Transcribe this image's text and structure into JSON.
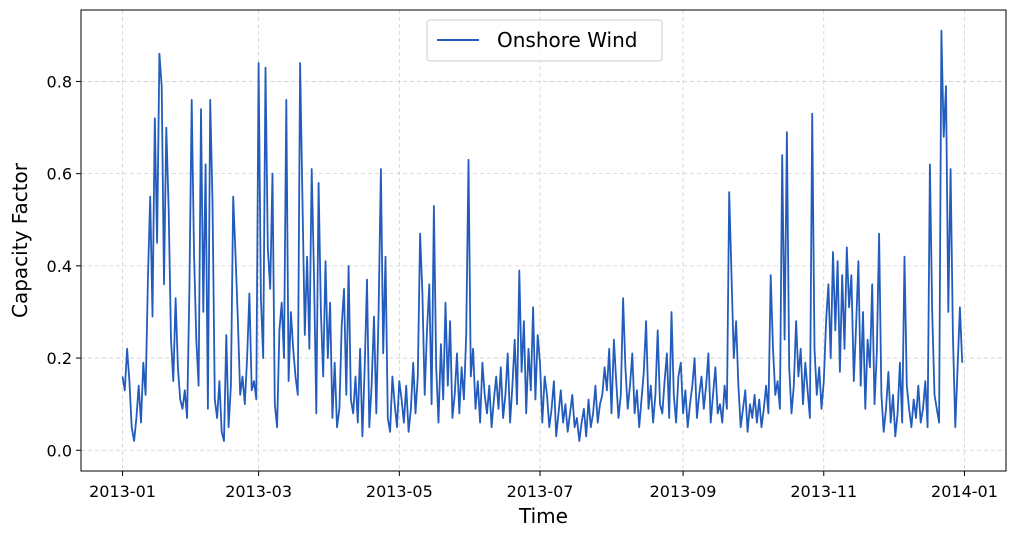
{
  "chart_data": {
    "type": "line",
    "title": "",
    "xlabel": "Time",
    "ylabel": "Capacity Factor",
    "xlim": [
      "2012-12-14",
      "2014-01-19"
    ],
    "ylim": [
      -0.045,
      0.955
    ],
    "x_ticks": [
      "2013-01-01",
      "2013-03-01",
      "2013-05-01",
      "2013-07-01",
      "2013-09-01",
      "2013-11-01",
      "2014-01-01"
    ],
    "x_tick_labels": [
      "2013-01",
      "2013-03",
      "2013-05",
      "2013-07",
      "2013-09",
      "2013-11",
      "2014-01"
    ],
    "y_ticks": [
      0.0,
      0.2,
      0.4,
      0.6,
      0.8
    ],
    "y_tick_labels": [
      "0.0",
      "0.2",
      "0.4",
      "0.6",
      "0.8"
    ],
    "grid": true,
    "legend_position": "top-center",
    "series": [
      {
        "name": "Onshore Wind",
        "color": "#235cbc",
        "x": [
          "2013-01-01",
          "2013-01-02",
          "2013-01-03",
          "2013-01-04",
          "2013-01-05",
          "2013-01-06",
          "2013-01-07",
          "2013-01-08",
          "2013-01-09",
          "2013-01-10",
          "2013-01-11",
          "2013-01-12",
          "2013-01-13",
          "2013-01-14",
          "2013-01-15",
          "2013-01-16",
          "2013-01-17",
          "2013-01-18",
          "2013-01-19",
          "2013-01-20",
          "2013-01-21",
          "2013-01-22",
          "2013-01-23",
          "2013-01-24",
          "2013-01-25",
          "2013-01-26",
          "2013-01-27",
          "2013-01-28",
          "2013-01-29",
          "2013-01-30",
          "2013-01-31",
          "2013-02-01",
          "2013-02-02",
          "2013-02-03",
          "2013-02-04",
          "2013-02-05",
          "2013-02-06",
          "2013-02-07",
          "2013-02-08",
          "2013-02-09",
          "2013-02-10",
          "2013-02-11",
          "2013-02-12",
          "2013-02-13",
          "2013-02-14",
          "2013-02-15",
          "2013-02-16",
          "2013-02-17",
          "2013-02-18",
          "2013-02-19",
          "2013-02-20",
          "2013-02-21",
          "2013-02-22",
          "2013-02-23",
          "2013-02-24",
          "2013-02-25",
          "2013-02-26",
          "2013-02-27",
          "2013-02-28",
          "2013-03-01",
          "2013-03-02",
          "2013-03-03",
          "2013-03-04",
          "2013-03-05",
          "2013-03-06",
          "2013-03-07",
          "2013-03-08",
          "2013-03-09",
          "2013-03-10",
          "2013-03-11",
          "2013-03-12",
          "2013-03-13",
          "2013-03-14",
          "2013-03-15",
          "2013-03-16",
          "2013-03-17",
          "2013-03-18",
          "2013-03-19",
          "2013-03-20",
          "2013-03-21",
          "2013-03-22",
          "2013-03-23",
          "2013-03-24",
          "2013-03-25",
          "2013-03-26",
          "2013-03-27",
          "2013-03-28",
          "2013-03-29",
          "2013-03-30",
          "2013-03-31",
          "2013-04-01",
          "2013-04-02",
          "2013-04-03",
          "2013-04-04",
          "2013-04-05",
          "2013-04-06",
          "2013-04-07",
          "2013-04-08",
          "2013-04-09",
          "2013-04-10",
          "2013-04-11",
          "2013-04-12",
          "2013-04-13",
          "2013-04-14",
          "2013-04-15",
          "2013-04-16",
          "2013-04-17",
          "2013-04-18",
          "2013-04-19",
          "2013-04-20",
          "2013-04-21",
          "2013-04-22",
          "2013-04-23",
          "2013-04-24",
          "2013-04-25",
          "2013-04-26",
          "2013-04-27",
          "2013-04-28",
          "2013-04-29",
          "2013-04-30",
          "2013-05-01",
          "2013-05-02",
          "2013-05-03",
          "2013-05-04",
          "2013-05-05",
          "2013-05-06",
          "2013-05-07",
          "2013-05-08",
          "2013-05-09",
          "2013-05-10",
          "2013-05-11",
          "2013-05-12",
          "2013-05-13",
          "2013-05-14",
          "2013-05-15",
          "2013-05-16",
          "2013-05-17",
          "2013-05-18",
          "2013-05-19",
          "2013-05-20",
          "2013-05-21",
          "2013-05-22",
          "2013-05-23",
          "2013-05-24",
          "2013-05-25",
          "2013-05-26",
          "2013-05-27",
          "2013-05-28",
          "2013-05-29",
          "2013-05-30",
          "2013-05-31",
          "2013-06-01",
          "2013-06-02",
          "2013-06-03",
          "2013-06-04",
          "2013-06-05",
          "2013-06-06",
          "2013-06-07",
          "2013-06-08",
          "2013-06-09",
          "2013-06-10",
          "2013-06-11",
          "2013-06-12",
          "2013-06-13",
          "2013-06-14",
          "2013-06-15",
          "2013-06-16",
          "2013-06-17",
          "2013-06-18",
          "2013-06-19",
          "2013-06-20",
          "2013-06-21",
          "2013-06-22",
          "2013-06-23",
          "2013-06-24",
          "2013-06-25",
          "2013-06-26",
          "2013-06-27",
          "2013-06-28",
          "2013-06-29",
          "2013-06-30",
          "2013-07-01",
          "2013-07-02",
          "2013-07-03",
          "2013-07-04",
          "2013-07-05",
          "2013-07-06",
          "2013-07-07",
          "2013-07-08",
          "2013-07-09",
          "2013-07-10",
          "2013-07-11",
          "2013-07-12",
          "2013-07-13",
          "2013-07-14",
          "2013-07-15",
          "2013-07-16",
          "2013-07-17",
          "2013-07-18",
          "2013-07-19",
          "2013-07-20",
          "2013-07-21",
          "2013-07-22",
          "2013-07-23",
          "2013-07-24",
          "2013-07-25",
          "2013-07-26",
          "2013-07-27",
          "2013-07-28",
          "2013-07-29",
          "2013-07-30",
          "2013-07-31",
          "2013-08-01",
          "2013-08-02",
          "2013-08-03",
          "2013-08-04",
          "2013-08-05",
          "2013-08-06",
          "2013-08-07",
          "2013-08-08",
          "2013-08-09",
          "2013-08-10",
          "2013-08-11",
          "2013-08-12",
          "2013-08-13",
          "2013-08-14",
          "2013-08-15",
          "2013-08-16",
          "2013-08-17",
          "2013-08-18",
          "2013-08-19",
          "2013-08-20",
          "2013-08-21",
          "2013-08-22",
          "2013-08-23",
          "2013-08-24",
          "2013-08-25",
          "2013-08-26",
          "2013-08-27",
          "2013-08-28",
          "2013-08-29",
          "2013-08-30",
          "2013-08-31",
          "2013-09-01",
          "2013-09-02",
          "2013-09-03",
          "2013-09-04",
          "2013-09-05",
          "2013-09-06",
          "2013-09-07",
          "2013-09-08",
          "2013-09-09",
          "2013-09-10",
          "2013-09-11",
          "2013-09-12",
          "2013-09-13",
          "2013-09-14",
          "2013-09-15",
          "2013-09-16",
          "2013-09-17",
          "2013-09-18",
          "2013-09-19",
          "2013-09-20",
          "2013-09-21",
          "2013-09-22",
          "2013-09-23",
          "2013-09-24",
          "2013-09-25",
          "2013-09-26",
          "2013-09-27",
          "2013-09-28",
          "2013-09-29",
          "2013-09-30",
          "2013-10-01",
          "2013-10-02",
          "2013-10-03",
          "2013-10-04",
          "2013-10-05",
          "2013-10-06",
          "2013-10-07",
          "2013-10-08",
          "2013-10-09",
          "2013-10-10",
          "2013-10-11",
          "2013-10-12",
          "2013-10-13",
          "2013-10-14",
          "2013-10-15",
          "2013-10-16",
          "2013-10-17",
          "2013-10-18",
          "2013-10-19",
          "2013-10-20",
          "2013-10-21",
          "2013-10-22",
          "2013-10-23",
          "2013-10-24",
          "2013-10-25",
          "2013-10-26",
          "2013-10-27",
          "2013-10-28",
          "2013-10-29",
          "2013-10-30",
          "2013-10-31",
          "2013-11-01",
          "2013-11-02",
          "2013-11-03",
          "2013-11-04",
          "2013-11-05",
          "2013-11-06",
          "2013-11-07",
          "2013-11-08",
          "2013-11-09",
          "2013-11-10",
          "2013-11-11",
          "2013-11-12",
          "2013-11-13",
          "2013-11-14",
          "2013-11-15",
          "2013-11-16",
          "2013-11-17",
          "2013-11-18",
          "2013-11-19",
          "2013-11-20",
          "2013-11-21",
          "2013-11-22",
          "2013-11-23",
          "2013-11-24",
          "2013-11-25",
          "2013-11-26",
          "2013-11-27",
          "2013-11-28",
          "2013-11-29",
          "2013-11-30",
          "2013-12-01",
          "2013-12-02",
          "2013-12-03",
          "2013-12-04",
          "2013-12-05",
          "2013-12-06",
          "2013-12-07",
          "2013-12-08",
          "2013-12-09",
          "2013-12-10",
          "2013-12-11",
          "2013-12-12",
          "2013-12-13",
          "2013-12-14",
          "2013-12-15",
          "2013-12-16",
          "2013-12-17",
          "2013-12-18",
          "2013-12-19",
          "2013-12-20",
          "2013-12-21",
          "2013-12-22",
          "2013-12-23",
          "2013-12-24",
          "2013-12-25",
          "2013-12-26",
          "2013-12-27",
          "2013-12-28",
          "2013-12-29",
          "2013-12-30",
          "2013-12-31"
        ],
        "values": [
          0.16,
          0.13,
          0.22,
          0.15,
          0.05,
          0.02,
          0.07,
          0.14,
          0.06,
          0.19,
          0.12,
          0.37,
          0.55,
          0.29,
          0.72,
          0.45,
          0.86,
          0.79,
          0.36,
          0.7,
          0.52,
          0.24,
          0.15,
          0.33,
          0.18,
          0.11,
          0.09,
          0.13,
          0.07,
          0.35,
          0.76,
          0.43,
          0.24,
          0.14,
          0.74,
          0.3,
          0.62,
          0.09,
          0.76,
          0.54,
          0.11,
          0.07,
          0.15,
          0.04,
          0.02,
          0.25,
          0.05,
          0.14,
          0.55,
          0.42,
          0.28,
          0.12,
          0.16,
          0.1,
          0.2,
          0.34,
          0.13,
          0.15,
          0.11,
          0.84,
          0.33,
          0.2,
          0.83,
          0.44,
          0.35,
          0.6,
          0.1,
          0.05,
          0.26,
          0.32,
          0.2,
          0.76,
          0.15,
          0.3,
          0.22,
          0.16,
          0.12,
          0.84,
          0.55,
          0.25,
          0.42,
          0.22,
          0.61,
          0.38,
          0.08,
          0.58,
          0.3,
          0.16,
          0.41,
          0.2,
          0.32,
          0.07,
          0.19,
          0.05,
          0.09,
          0.27,
          0.35,
          0.12,
          0.4,
          0.11,
          0.08,
          0.16,
          0.06,
          0.22,
          0.03,
          0.18,
          0.37,
          0.05,
          0.14,
          0.29,
          0.08,
          0.3,
          0.61,
          0.21,
          0.42,
          0.07,
          0.04,
          0.16,
          0.1,
          0.05,
          0.15,
          0.11,
          0.06,
          0.14,
          0.04,
          0.09,
          0.19,
          0.08,
          0.16,
          0.47,
          0.34,
          0.12,
          0.26,
          0.36,
          0.1,
          0.53,
          0.18,
          0.06,
          0.23,
          0.11,
          0.32,
          0.14,
          0.28,
          0.07,
          0.12,
          0.21,
          0.08,
          0.18,
          0.11,
          0.25,
          0.63,
          0.16,
          0.22,
          0.09,
          0.15,
          0.06,
          0.19,
          0.12,
          0.08,
          0.14,
          0.05,
          0.11,
          0.16,
          0.09,
          0.18,
          0.07,
          0.12,
          0.21,
          0.06,
          0.14,
          0.24,
          0.1,
          0.39,
          0.17,
          0.28,
          0.08,
          0.22,
          0.13,
          0.31,
          0.11,
          0.25,
          0.19,
          0.06,
          0.16,
          0.12,
          0.05,
          0.09,
          0.15,
          0.03,
          0.08,
          0.13,
          0.06,
          0.1,
          0.04,
          0.08,
          0.12,
          0.05,
          0.07,
          0.02,
          0.06,
          0.09,
          0.03,
          0.11,
          0.05,
          0.08,
          0.14,
          0.06,
          0.1,
          0.12,
          0.18,
          0.13,
          0.22,
          0.08,
          0.24,
          0.15,
          0.07,
          0.12,
          0.33,
          0.18,
          0.09,
          0.14,
          0.21,
          0.08,
          0.13,
          0.05,
          0.11,
          0.17,
          0.28,
          0.09,
          0.14,
          0.06,
          0.12,
          0.26,
          0.1,
          0.08,
          0.15,
          0.21,
          0.07,
          0.3,
          0.12,
          0.06,
          0.16,
          0.19,
          0.08,
          0.13,
          0.05,
          0.1,
          0.14,
          0.2,
          0.07,
          0.12,
          0.16,
          0.09,
          0.14,
          0.21,
          0.06,
          0.12,
          0.18,
          0.08,
          0.1,
          0.06,
          0.14,
          0.09,
          0.56,
          0.38,
          0.2,
          0.28,
          0.14,
          0.05,
          0.09,
          0.13,
          0.04,
          0.1,
          0.07,
          0.12,
          0.06,
          0.11,
          0.05,
          0.09,
          0.14,
          0.08,
          0.38,
          0.22,
          0.12,
          0.15,
          0.09,
          0.64,
          0.24,
          0.69,
          0.18,
          0.08,
          0.14,
          0.28,
          0.16,
          0.22,
          0.1,
          0.19,
          0.13,
          0.07,
          0.73,
          0.22,
          0.12,
          0.18,
          0.09,
          0.15,
          0.28,
          0.36,
          0.2,
          0.43,
          0.26,
          0.41,
          0.17,
          0.38,
          0.22,
          0.44,
          0.31,
          0.38,
          0.15,
          0.27,
          0.41,
          0.14,
          0.3,
          0.09,
          0.24,
          0.18,
          0.36,
          0.1,
          0.21,
          0.47,
          0.12,
          0.04,
          0.09,
          0.17,
          0.06,
          0.12,
          0.03,
          0.08,
          0.19,
          0.06,
          0.42,
          0.14,
          0.09,
          0.05,
          0.11,
          0.07,
          0.14,
          0.06,
          0.09,
          0.15,
          0.05,
          0.62,
          0.3,
          0.12,
          0.09,
          0.06,
          0.91,
          0.68,
          0.79,
          0.3,
          0.61,
          0.25,
          0.05,
          0.18,
          0.31,
          0.19
        ]
      }
    ]
  }
}
